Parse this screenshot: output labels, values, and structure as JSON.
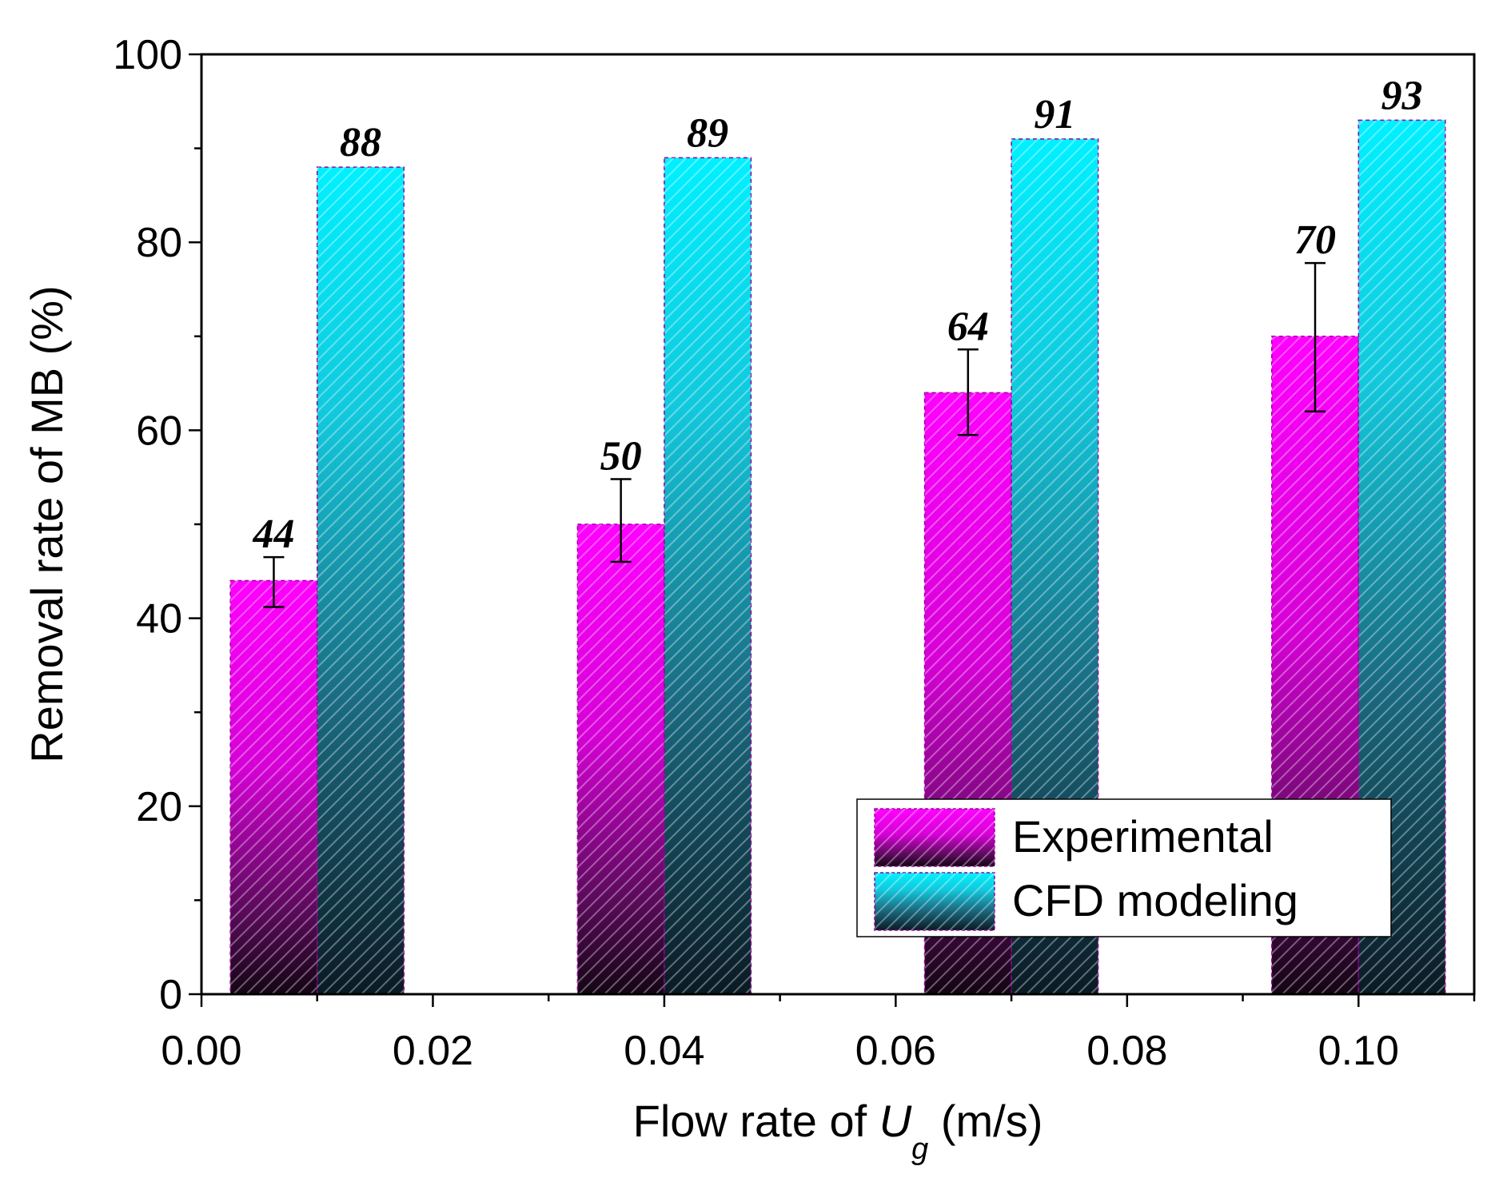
{
  "chart_data": {
    "type": "bar",
    "x": [
      0.01,
      0.04,
      0.07,
      0.1
    ],
    "series": [
      {
        "name": "Experimental",
        "values": [
          44,
          50,
          64,
          70
        ],
        "labels": [
          "44",
          "50",
          "64",
          "70"
        ],
        "error_low": [
          41.2,
          46.0,
          59.5,
          62.0
        ],
        "error_high": [
          46.5,
          54.8,
          68.6,
          77.8
        ],
        "color": "#ff00ff"
      },
      {
        "name": "CFD modeling",
        "values": [
          88,
          89,
          91,
          93
        ],
        "labels": [
          "88",
          "89",
          "91",
          "93"
        ],
        "color": "#00e5f5"
      }
    ],
    "xlim": [
      0.0,
      0.11
    ],
    "ylim": [
      0,
      100
    ],
    "x_ticks": [
      "0.00",
      "0.02",
      "0.04",
      "0.06",
      "0.08",
      "0.10"
    ],
    "y_ticks": [
      "0",
      "20",
      "40",
      "60",
      "80",
      "100"
    ],
    "xlabel_prefix": "Flow rate of ",
    "xlabel_var": "U",
    "xlabel_sub": "g",
    "xlabel_suffix": " (m/s)",
    "ylabel": "Removal rate of MB (%)",
    "legend_position": "bottom-right",
    "grid": false
  }
}
